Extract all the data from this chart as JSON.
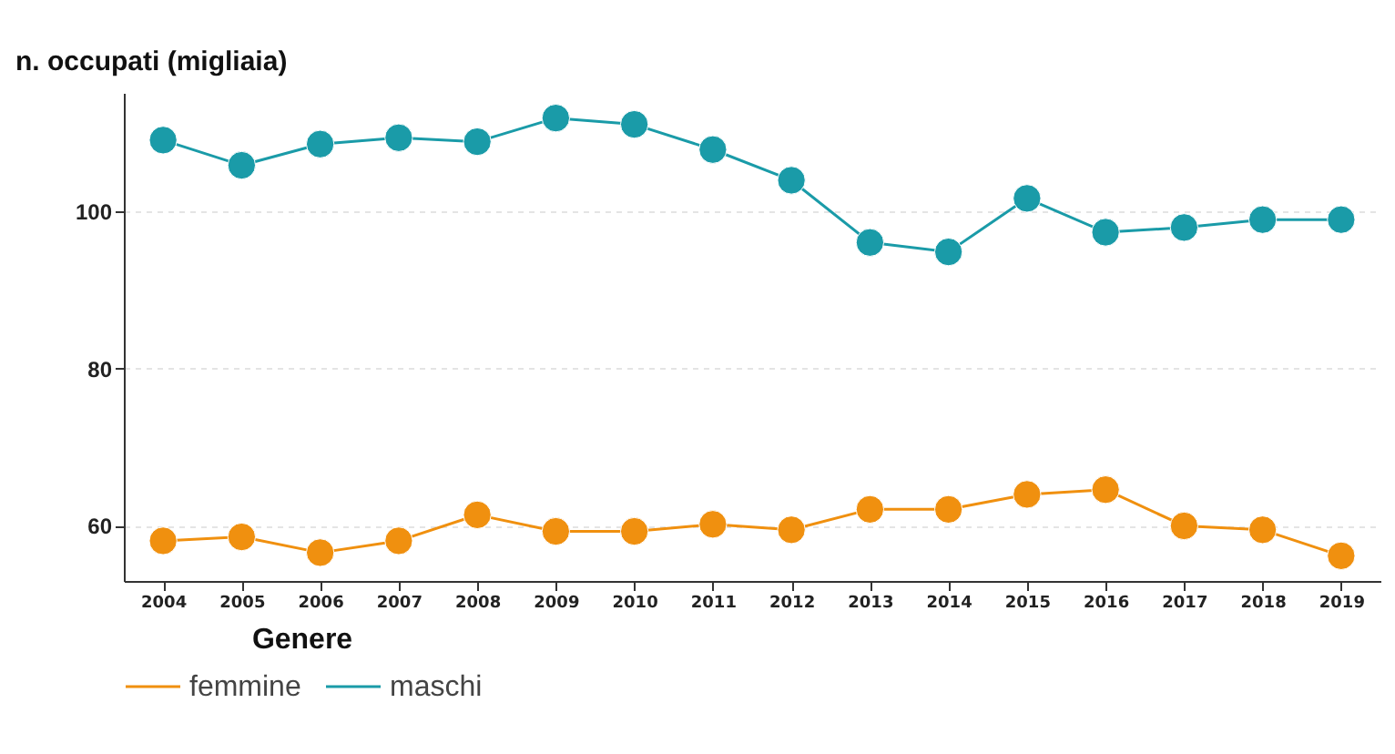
{
  "chart_data": {
    "type": "line",
    "ylabel": "n. occupati (migliaia)",
    "legend_title": "Genere",
    "categories": [
      "2004",
      "2005",
      "2006",
      "2007",
      "2008",
      "2009",
      "2010",
      "2011",
      "2012",
      "2013",
      "2014",
      "2015",
      "2016",
      "2017",
      "2018",
      "2019"
    ],
    "series": [
      {
        "name": "femmine",
        "color": "#f0900f",
        "values": [
          58.1,
          58.6,
          56.6,
          58.1,
          61.4,
          59.3,
          59.3,
          60.2,
          59.5,
          62.1,
          62.1,
          64.0,
          64.6,
          60.0,
          59.5,
          56.2
        ]
      },
      {
        "name": "maschi",
        "color": "#1a9ba8",
        "values": [
          109.0,
          105.8,
          108.5,
          109.3,
          108.8,
          111.8,
          111.0,
          107.8,
          103.9,
          96.0,
          94.8,
          101.6,
          97.3,
          97.9,
          98.9,
          98.9
        ]
      }
    ],
    "ylim": [
      53,
      115
    ],
    "yticks": [
      60,
      80,
      100
    ],
    "grid": "y",
    "legend": "bottom",
    "marker": "circle",
    "line_style": "solid"
  }
}
